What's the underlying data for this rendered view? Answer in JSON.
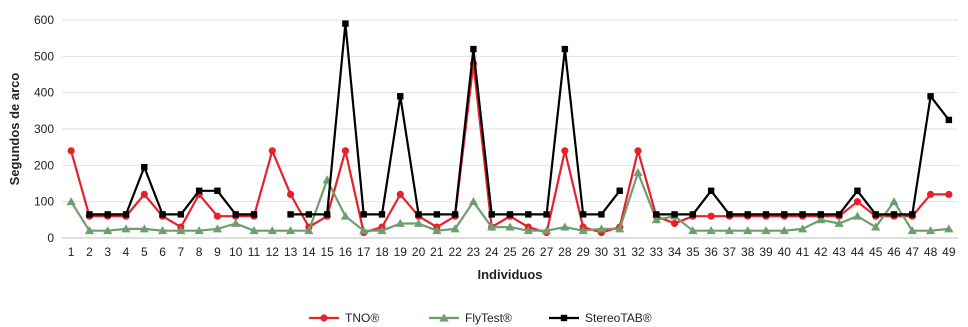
{
  "chart_data": {
    "type": "line",
    "title": "",
    "xlabel": "Individuos",
    "ylabel": "Segundos de arco",
    "ylim": [
      0,
      600
    ],
    "yticks": [
      0,
      100,
      200,
      300,
      400,
      500,
      600
    ],
    "grid": "horizontal",
    "legend_position": "bottom",
    "categories": [
      "1",
      "2",
      "3",
      "4",
      "5",
      "6",
      "7",
      "8",
      "9",
      "10",
      "11",
      "12",
      "13",
      "14",
      "15",
      "16",
      "17",
      "18",
      "19",
      "20",
      "21",
      "22",
      "23",
      "24",
      "25",
      "26",
      "27",
      "28",
      "29",
      "30",
      "31",
      "32",
      "33",
      "34",
      "35",
      "36",
      "37",
      "38",
      "39",
      "40",
      "41",
      "42",
      "43",
      "44",
      "45",
      "46",
      "47",
      "48",
      "49"
    ],
    "series": [
      {
        "name": "TNO®",
        "color": "#e8202a",
        "marker": "circle",
        "values": [
          240,
          60,
          60,
          60,
          120,
          60,
          30,
          120,
          60,
          60,
          60,
          240,
          120,
          30,
          60,
          240,
          15,
          30,
          120,
          60,
          30,
          60,
          480,
          30,
          60,
          30,
          15,
          240,
          30,
          15,
          30,
          240,
          60,
          40,
          60,
          60,
          60,
          60,
          60,
          60,
          60,
          60,
          60,
          100,
          60,
          60,
          60,
          120,
          120
        ]
      },
      {
        "name": "FlyTest®",
        "color": "#6e9e6e",
        "marker": "triangle",
        "values": [
          100,
          20,
          20,
          25,
          25,
          20,
          20,
          20,
          25,
          40,
          20,
          20,
          20,
          20,
          160,
          60,
          20,
          20,
          40,
          40,
          20,
          25,
          100,
          30,
          30,
          20,
          20,
          30,
          20,
          25,
          25,
          180,
          50,
          60,
          20,
          20,
          20,
          20,
          20,
          20,
          25,
          50,
          40,
          60,
          30,
          100,
          20,
          20,
          25
        ]
      },
      {
        "name": "StereoTAB®",
        "color": "#000000",
        "marker": "square",
        "values": [
          null,
          65,
          65,
          65,
          195,
          65,
          65,
          130,
          130,
          65,
          65,
          null,
          65,
          65,
          65,
          590,
          65,
          65,
          390,
          65,
          65,
          65,
          520,
          65,
          65,
          65,
          65,
          520,
          65,
          65,
          130,
          null,
          65,
          65,
          65,
          130,
          65,
          65,
          65,
          65,
          65,
          65,
          65,
          130,
          65,
          65,
          65,
          390,
          325
        ]
      }
    ]
  }
}
